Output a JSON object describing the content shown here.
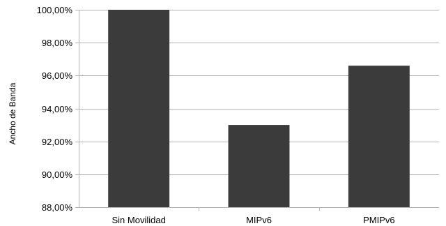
{
  "chart_data": {
    "type": "bar",
    "categories": [
      "Sin Movilidad",
      "MIPv6",
      "PMIPv6"
    ],
    "values": [
      100.0,
      93.0,
      96.6
    ],
    "title": "",
    "xlabel": "",
    "ylabel": "Ancho de Banda",
    "ylim": [
      88,
      100
    ],
    "yticks": [
      88,
      90,
      92,
      94,
      96,
      98,
      100
    ],
    "ytick_labels": [
      "88,00%",
      "90,00%",
      "92,00%",
      "94,00%",
      "96,00%",
      "98,00%",
      "100,00%"
    ],
    "grid": true,
    "legend": "none",
    "bar_color": "#3b3b3b",
    "grid_color": "#b3b3b3"
  }
}
